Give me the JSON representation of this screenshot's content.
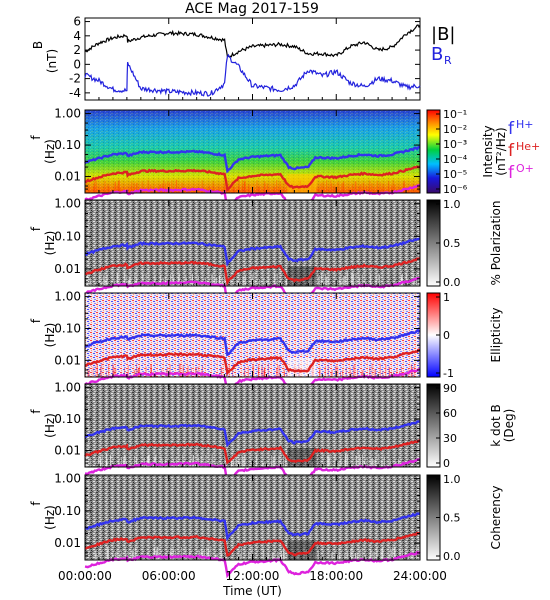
{
  "title": "ACE Mag 2017-159",
  "xaxis": {
    "label": "Time (UT)",
    "ticks": [
      "00:00:00",
      "06:00:00",
      "12:00:00",
      "18:00:00",
      "24:00:00"
    ],
    "hours": [
      0,
      6,
      12,
      18,
      24
    ]
  },
  "legend_b": {
    "bmag": "|B|",
    "br": "B",
    "br_sub": "R",
    "bmag_color": "#000000",
    "br_color": "#2222dd"
  },
  "legend_f": {
    "h": {
      "label": "f",
      "sub": "H+",
      "color": "#3333ee"
    },
    "he": {
      "label": "f",
      "sub": "He+",
      "color": "#dd2222"
    },
    "o": {
      "label": "f",
      "sub": "O+",
      "color": "#dd22dd"
    }
  },
  "freq_ticks": [
    "1.00",
    "0.10",
    "0.01"
  ],
  "freq_label": "f",
  "freq_unit": "(Hz)",
  "chart_data": [
    {
      "type": "line",
      "panel": "B field",
      "ylabel": "B",
      "yunit": "(nT)",
      "ylim": [
        -5,
        6.5
      ],
      "yticks": [
        "6",
        "4",
        "2",
        "0",
        "-2",
        "-4"
      ],
      "ytick_values": [
        6,
        4,
        2,
        0,
        -2,
        -4
      ],
      "series": [
        {
          "name": "|B|",
          "x": [
            0,
            1,
            2,
            3,
            3.05,
            4,
            6,
            8,
            9,
            10,
            10.2,
            11,
            12,
            14,
            15,
            16,
            17,
            18,
            19,
            20,
            21,
            22,
            23,
            24
          ],
          "values": [
            1.8,
            3,
            3.7,
            4.1,
            3.2,
            3.8,
            4.4,
            4.2,
            3.8,
            3.4,
            1,
            1.8,
            2.5,
            2.8,
            2.5,
            1.5,
            1.5,
            1.2,
            2.5,
            3.1,
            2,
            2.4,
            4.3,
            5.5
          ]
        },
        {
          "name": "B_R",
          "x": [
            0,
            1,
            2,
            3,
            3.05,
            4,
            6,
            8,
            9,
            10,
            10.2,
            11,
            12,
            14,
            15,
            16,
            17,
            18,
            19,
            20,
            21,
            22,
            23,
            24
          ],
          "values": [
            -1.5,
            -2.3,
            -3.5,
            -3.7,
            0.2,
            -3.4,
            -3.8,
            -4,
            -4.1,
            -2.7,
            1.2,
            -0.3,
            -3,
            -3.6,
            -3,
            -0.8,
            -1.6,
            -1,
            -2.6,
            -3.1,
            -2,
            -2.3,
            -3.2,
            -3
          ]
        }
      ]
    },
    {
      "type": "heatmap",
      "panel": "Intensity",
      "colorbar_label": "Intensity",
      "colorbar_unit": "(nT²/Hz)",
      "colorbar_ticks": [
        "10⁻¹",
        "10⁻²",
        "10⁻³",
        "10⁻⁴",
        "10⁻⁵",
        "10⁻⁶"
      ]
    },
    {
      "type": "heatmap",
      "panel": "Polarization",
      "colorbar_label": "% Polarization",
      "colorbar_ticks": [
        "1.0",
        "0.5",
        "0.0"
      ]
    },
    {
      "type": "heatmap",
      "panel": "Ellipticity",
      "colorbar_label": "Ellipticity",
      "colorbar_ticks": [
        "1",
        "0",
        "-1"
      ]
    },
    {
      "type": "heatmap",
      "panel": "k dot B",
      "colorbar_label": "k dot B",
      "colorbar_unit": "(Deg)",
      "colorbar_ticks": [
        "90",
        "60",
        "30",
        "0"
      ]
    },
    {
      "type": "heatmap",
      "panel": "Coherency",
      "colorbar_label": "Coherency",
      "colorbar_ticks": [
        "1.0",
        "0.5",
        "0.0"
      ]
    }
  ],
  "gyro_lines": {
    "x": [
      0,
      1,
      2,
      3,
      3.05,
      4,
      6,
      8,
      9,
      10,
      10.2,
      11,
      12,
      13,
      14,
      14.6,
      15,
      16,
      16.5,
      17,
      18,
      19,
      20,
      21,
      22,
      23,
      24
    ],
    "fH": [
      0.028,
      0.038,
      0.05,
      0.055,
      0.045,
      0.06,
      0.06,
      0.062,
      0.055,
      0.048,
      0.015,
      0.035,
      0.042,
      0.045,
      0.048,
      0.02,
      0.018,
      0.02,
      0.04,
      0.04,
      0.038,
      0.045,
      0.05,
      0.045,
      0.05,
      0.065,
      0.085
    ],
    "fHe": [
      0.007,
      0.0095,
      0.0125,
      0.0138,
      0.011,
      0.015,
      0.015,
      0.0155,
      0.0138,
      0.012,
      0.004,
      0.0088,
      0.0105,
      0.0112,
      0.012,
      0.005,
      0.0045,
      0.005,
      0.01,
      0.01,
      0.0095,
      0.0112,
      0.0125,
      0.0112,
      0.0125,
      0.016,
      0.021
    ],
    "fO": [
      0.0018,
      0.0024,
      0.0031,
      0.0034,
      0.0028,
      0.0037,
      0.0037,
      0.0039,
      0.0034,
      0.003,
      0.001,
      0.0022,
      0.0026,
      0.0028,
      0.003,
      0.0013,
      0.0011,
      0.0013,
      0.0025,
      0.0025,
      0.0024,
      0.0028,
      0.0031,
      0.0028,
      0.0031,
      0.004,
      0.0053
    ]
  }
}
